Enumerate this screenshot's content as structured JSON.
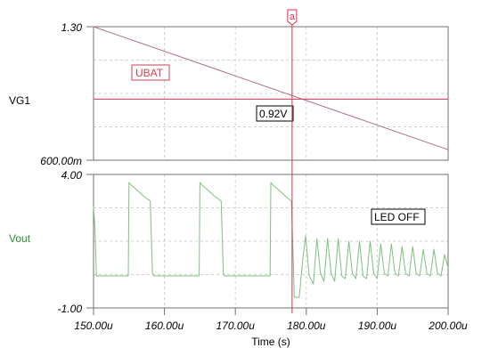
{
  "chart_data": [
    {
      "type": "line",
      "ylabel": "VG1",
      "ylabel_color": "#000000",
      "y_tick_labels": [
        "1.30",
        "600.00m"
      ],
      "ylim": [
        0.6,
        1.3
      ],
      "xlim": [
        150,
        200
      ],
      "grid": true,
      "series": [
        {
          "name": "UBAT",
          "color": "#b07080",
          "x": [
            150,
            200
          ],
          "y": [
            1.3,
            0.655
          ]
        }
      ],
      "cursor_value_label": "0.92V",
      "cursor_y": 0.92
    },
    {
      "type": "line",
      "ylabel": "Vout",
      "ylabel_color": "#2e8b2e",
      "y_tick_labels": [
        "4.00",
        "-1.00"
      ],
      "ylim": [
        -1.0,
        4.0
      ],
      "xlim": [
        150,
        200
      ],
      "grid": true,
      "annotation": "LED OFF",
      "series": [
        {
          "name": "",
          "color": "#7fc07f",
          "x": [
            149.6,
            150.2,
            150.4,
            154.9,
            155.0,
            155.3,
            156.2,
            157.0,
            158.0,
            158.3,
            158.5,
            164.9,
            165.0,
            165.3,
            166.2,
            167.0,
            168.0,
            168.3,
            168.5,
            174.9,
            175.0,
            175.3,
            176.2,
            177.0,
            177.9,
            178.2,
            178.3,
            179.0,
            179.5,
            179.9,
            180.4,
            181.0,
            181.5,
            182.0,
            182.5,
            183.0,
            183.5,
            184.0,
            184.5,
            185.0,
            185.5,
            186.0,
            186.5,
            187.0,
            187.5,
            188.0,
            188.5,
            189.0,
            189.5,
            190.0,
            190.5,
            191.0,
            191.5,
            192.0,
            192.5,
            193.0,
            193.5,
            194.0,
            194.5,
            195.0,
            195.5,
            196.0,
            196.5,
            197.0,
            197.5,
            198.0,
            198.5,
            199.0,
            199.5,
            200.0
          ],
          "y": [
            2.8,
            2.0,
            0.2,
            0.2,
            3.7,
            3.6,
            3.4,
            3.2,
            3.0,
            0.3,
            0.2,
            0.2,
            3.7,
            3.6,
            3.4,
            3.2,
            3.0,
            0.3,
            0.2,
            0.2,
            3.7,
            3.6,
            3.4,
            3.2,
            3.0,
            0.5,
            -0.6,
            -0.6,
            0.8,
            1.7,
            0.2,
            -0.1,
            1.6,
            0.3,
            0.0,
            1.6,
            0.3,
            0.0,
            1.6,
            0.2,
            0.1,
            1.5,
            0.3,
            0.1,
            1.5,
            0.2,
            0.1,
            1.5,
            0.3,
            0.1,
            1.4,
            0.3,
            0.2,
            1.4,
            0.3,
            0.2,
            1.3,
            0.3,
            0.2,
            1.3,
            0.3,
            0.2,
            1.2,
            0.3,
            0.2,
            1.2,
            0.3,
            0.2,
            1.0,
            0.5
          ]
        }
      ]
    }
  ],
  "x_axis": {
    "label": "Time (s)",
    "ticks": [
      150,
      160,
      170,
      180,
      190,
      200
    ],
    "tick_labels": [
      "150.00u",
      "160.00u",
      "170.00u",
      "180.00u",
      "190.00u",
      "200.00u"
    ]
  },
  "cursor": {
    "label": "a",
    "x": 178.0,
    "color": "#e03050"
  },
  "colors": {
    "grid": "#d0d0d0",
    "axis": "#707070",
    "cursor": "#e03050",
    "label_red": "#d04050"
  }
}
